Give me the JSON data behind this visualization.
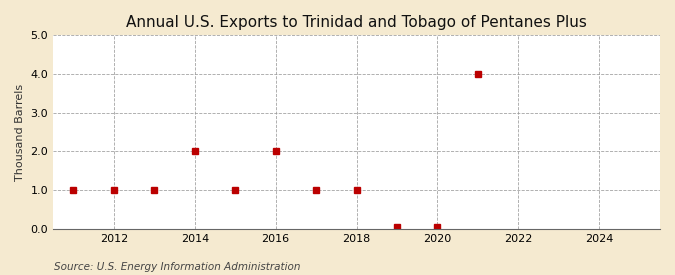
{
  "title": "Annual U.S. Exports to Trinidad and Tobago of Pentanes Plus",
  "ylabel": "Thousand Barrels",
  "source": "Source: U.S. Energy Information Administration",
  "years": [
    2011,
    2012,
    2013,
    2014,
    2015,
    2016,
    2017,
    2018,
    2019,
    2020,
    2021
  ],
  "values": [
    1.0,
    1.0,
    1.0,
    2.0,
    1.0,
    2.0,
    1.0,
    1.0,
    0.05,
    0.05,
    4.0
  ],
  "marker_color": "#bb0000",
  "marker_size": 4,
  "fig_bg_color": "#f5ead0",
  "plot_bg_color": "#ffffff",
  "grid_color": "#999999",
  "xlim": [
    2010.5,
    2025.5
  ],
  "ylim": [
    0.0,
    5.0
  ],
  "yticks": [
    0.0,
    1.0,
    2.0,
    3.0,
    4.0,
    5.0
  ],
  "xticks": [
    2012,
    2014,
    2016,
    2018,
    2020,
    2022,
    2024
  ],
  "title_fontsize": 11,
  "ylabel_fontsize": 8,
  "tick_fontsize": 8,
  "source_fontsize": 7.5
}
